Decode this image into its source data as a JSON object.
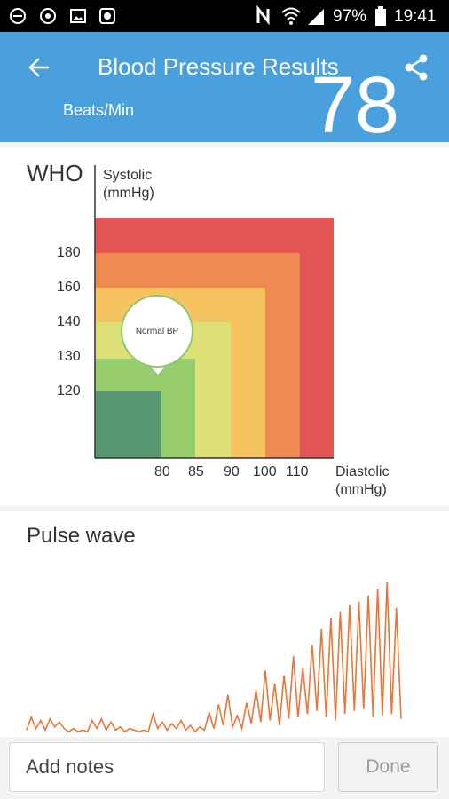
{
  "status_bar": {
    "battery_percent": "97%",
    "time": "19:41",
    "left_icons": [
      "do-not-disturb-icon",
      "sync-icon",
      "image-icon",
      "gallery-icon"
    ],
    "right_icons": [
      "nfc-icon",
      "wifi-icon",
      "signal-icon",
      "battery-icon"
    ]
  },
  "app_bar": {
    "title": "Blood Pressure Results",
    "beats_label": "Beats/Min",
    "pulse_value_partial": "78",
    "accent_color": "#4aa0dc"
  },
  "who_chart": {
    "label": "WHO",
    "y_axis_title_line1": "Systolic",
    "y_axis_title_line2": "(mmHg)",
    "x_axis_title_line1": "Diastolic",
    "x_axis_title_line2": "(mmHg)",
    "bubble_text": "Normal BP"
  },
  "chart_data": {
    "type": "heatmap",
    "title": "WHO",
    "ylabel": "Systolic (mmHg)",
    "xlabel": "Diastolic (mmHg)",
    "y_ticks": [
      "180",
      "160",
      "140",
      "130",
      "120"
    ],
    "x_ticks": [
      "80",
      "85",
      "90",
      "100",
      "110"
    ],
    "zones": [
      {
        "color": "#e35656",
        "systolic_max": "",
        "diastolic_max": ""
      },
      {
        "color": "#ef8a53",
        "systolic_max": 180,
        "diastolic_max": 110
      },
      {
        "color": "#f5c35f",
        "systolic_max": 160,
        "diastolic_max": 100
      },
      {
        "color": "#dce077",
        "systolic_max": 140,
        "diastolic_max": 90
      },
      {
        "color": "#97cd6d",
        "systolic_max": 130,
        "diastolic_max": 85
      },
      {
        "color": "#5a9871",
        "systolic_max": 120,
        "diastolic_max": 80
      }
    ]
  },
  "pulse_wave": {
    "title": "Pulse wave",
    "line_color": "#e8763a",
    "type": "line",
    "values": [
      2,
      10,
      3,
      8,
      2,
      9,
      4,
      7,
      3,
      1,
      3,
      1,
      2,
      1,
      8,
      3,
      9,
      2,
      7,
      2,
      4,
      1,
      3,
      2,
      1,
      2,
      1,
      12,
      3,
      7,
      2,
      6,
      3,
      8,
      2,
      5,
      1,
      4,
      2,
      13,
      3,
      18,
      5,
      24,
      4,
      11,
      3,
      19,
      6,
      27,
      7,
      39,
      8,
      31,
      5,
      36,
      9,
      48,
      10,
      41,
      12,
      55,
      14,
      65,
      10,
      72,
      8,
      76,
      12,
      80,
      14,
      82,
      15,
      86,
      10,
      90,
      11,
      94,
      12,
      78,
      9
    ]
  },
  "bottom_bar": {
    "notes_placeholder": "Add notes",
    "done_label": "Done"
  }
}
